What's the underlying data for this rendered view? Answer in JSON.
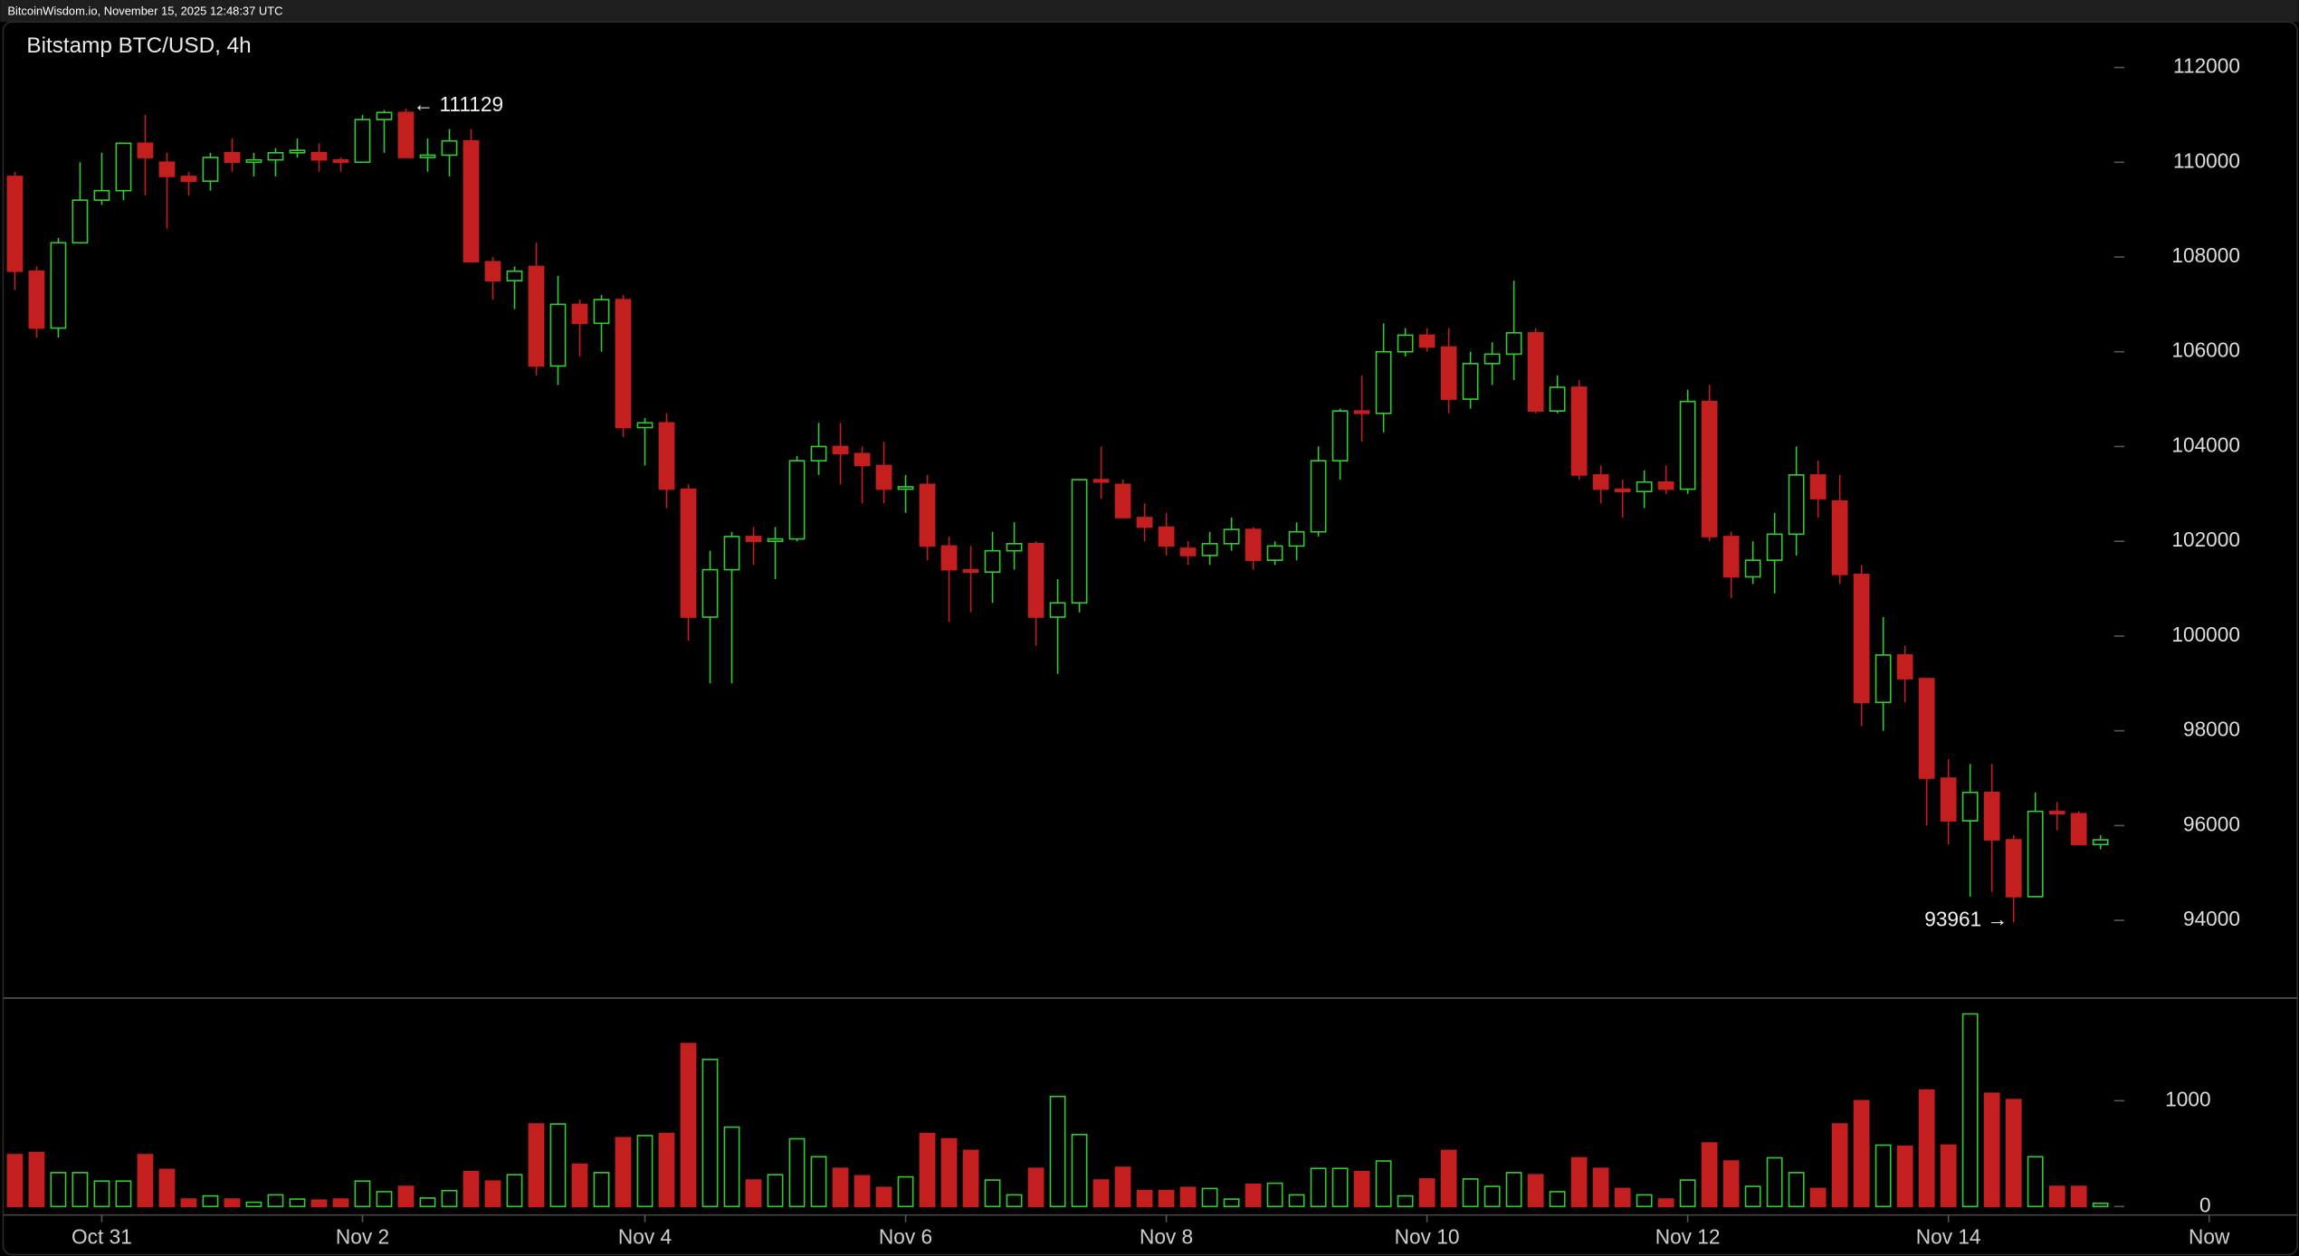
{
  "header": {
    "text": "BitcoinWisdom.io, November 15, 2025 12:48:37 UTC"
  },
  "chart_data": {
    "type": "candlestick",
    "title": "Bitstamp BTC/USD, 4h",
    "up_color": "#36c936",
    "down_color": "#c41f1f",
    "ylim": [
      92360,
      112960
    ],
    "yticks": [
      94000,
      96000,
      98000,
      100000,
      102000,
      104000,
      106000,
      108000,
      110000,
      112000
    ],
    "volume_ylim": [
      -80,
      1970
    ],
    "volume_yticks": [
      0,
      1000
    ],
    "xticks": [
      {
        "value": 4,
        "label": "Oct 31"
      },
      {
        "value": 16,
        "label": "Nov 2"
      },
      {
        "value": 29,
        "label": "Nov 4"
      },
      {
        "value": 41,
        "label": "Nov 6"
      },
      {
        "value": 53,
        "label": "Nov 8"
      },
      {
        "value": 65,
        "label": "Nov 10"
      },
      {
        "value": 77,
        "label": "Nov 12"
      },
      {
        "value": 89,
        "label": "Nov 14"
      },
      {
        "value": 101,
        "label": "Now"
      }
    ],
    "annotations": {
      "high": "← 111129",
      "low": "93961 →"
    },
    "open": [
      109700,
      107700,
      106500,
      108300,
      109200,
      109400,
      110400,
      110000,
      109700,
      109600,
      110200,
      110000,
      110050,
      110200,
      110200,
      110050,
      110000,
      110900,
      111050,
      110100,
      110150,
      110450,
      107900,
      107500,
      107800,
      105700,
      107000,
      106600,
      107100,
      104400,
      104500,
      103100,
      100400,
      101400,
      102100,
      102000,
      102050,
      103700,
      104000,
      103850,
      103600,
      103100,
      103200,
      101900,
      101400,
      101350,
      101800,
      101950,
      100400,
      100700,
      103300,
      103200,
      102500,
      102300,
      101850,
      101700,
      101950,
      102250,
      101600,
      101900,
      102200,
      103700,
      104750,
      104700,
      106000,
      106350,
      106100,
      105000,
      105750,
      105950,
      106400,
      104750,
      105250,
      103400,
      103100,
      103050,
      103250,
      103100,
      104950,
      102100,
      101250,
      101600,
      102150,
      103400,
      102850,
      101300,
      98600,
      99600,
      99100,
      97000,
      96100,
      96700,
      95700,
      94500,
      96300,
      96250,
      95600
    ],
    "high": [
      109800,
      107800,
      108400,
      110000,
      110200,
      110400,
      111000,
      110200,
      109800,
      110200,
      110500,
      110200,
      110300,
      110500,
      110400,
      110100,
      111000,
      111100,
      111129,
      110500,
      110700,
      110700,
      108000,
      107800,
      108300,
      107600,
      107100,
      107200,
      107200,
      104600,
      104700,
      103200,
      101800,
      102200,
      102300,
      102300,
      103800,
      104500,
      104500,
      104000,
      104100,
      103400,
      103400,
      102100,
      101900,
      102200,
      102400,
      102000,
      101200,
      103300,
      104000,
      103300,
      102800,
      102600,
      102000,
      102200,
      102500,
      102300,
      102000,
      102400,
      104000,
      104800,
      105500,
      106600,
      106500,
      106500,
      106500,
      106000,
      106200,
      107500,
      106500,
      105500,
      105400,
      103600,
      103300,
      103500,
      103600,
      105200,
      105300,
      102200,
      102000,
      102600,
      104000,
      103700,
      103400,
      101500,
      100400,
      99800,
      99100,
      97400,
      97300,
      97300,
      95800,
      96700,
      96500,
      96300,
      95800
    ],
    "low": [
      107300,
      106300,
      106300,
      108300,
      109100,
      109200,
      109300,
      108600,
      109300,
      109400,
      109800,
      109700,
      109700,
      110100,
      109800,
      109800,
      110000,
      110200,
      110100,
      109800,
      109700,
      107900,
      107100,
      106900,
      105500,
      105300,
      105900,
      106000,
      104200,
      103600,
      102700,
      99900,
      99000,
      99000,
      101500,
      101200,
      102000,
      103400,
      103200,
      102800,
      102800,
      102600,
      101600,
      100300,
      100500,
      100700,
      101400,
      99800,
      99200,
      100500,
      102900,
      102500,
      102000,
      101700,
      101500,
      101500,
      101800,
      101400,
      101500,
      101600,
      102100,
      103300,
      104100,
      104300,
      105900,
      106000,
      104700,
      104800,
      105300,
      105400,
      104700,
      104700,
      103300,
      102800,
      102500,
      102700,
      103000,
      103000,
      102000,
      100800,
      101100,
      100900,
      101700,
      102500,
      101100,
      98100,
      98000,
      98600,
      96000,
      95600,
      94500,
      94600,
      93961,
      94500,
      95900,
      95600,
      95500
    ],
    "close": [
      107700,
      106500,
      108300,
      109200,
      109400,
      110400,
      110100,
      109700,
      109600,
      110100,
      110000,
      110050,
      110200,
      110250,
      110050,
      110000,
      110900,
      111050,
      110100,
      110150,
      110450,
      107900,
      107500,
      107700,
      105700,
      107000,
      106600,
      107100,
      104400,
      104500,
      103100,
      100400,
      101400,
      102100,
      102000,
      102050,
      103700,
      104000,
      103850,
      103600,
      103100,
      103150,
      101900,
      101400,
      101350,
      101800,
      101950,
      100400,
      100700,
      103300,
      103250,
      102500,
      102300,
      101900,
      101700,
      101950,
      102250,
      101600,
      101900,
      102200,
      103700,
      104750,
      104700,
      106000,
      106350,
      106100,
      105000,
      105750,
      105950,
      106400,
      104750,
      105250,
      103400,
      103100,
      103050,
      103250,
      103100,
      104950,
      102100,
      101250,
      101600,
      102150,
      103400,
      102900,
      101300,
      98600,
      99600,
      99100,
      97000,
      96100,
      96700,
      95700,
      94500,
      96300,
      96250,
      95600,
      95700
    ],
    "volume": [
      490,
      510,
      320,
      320,
      240,
      240,
      490,
      350,
      70,
      100,
      70,
      40,
      110,
      70,
      60,
      70,
      240,
      140,
      190,
      80,
      150,
      330,
      240,
      300,
      780,
      780,
      400,
      320,
      650,
      670,
      690,
      1540,
      1390,
      750,
      250,
      300,
      640,
      470,
      360,
      290,
      180,
      280,
      690,
      640,
      530,
      250,
      110,
      360,
      1040,
      680,
      250,
      370,
      150,
      150,
      180,
      170,
      70,
      210,
      220,
      110,
      360,
      360,
      330,
      430,
      100,
      260,
      530,
      260,
      190,
      320,
      300,
      140,
      460,
      360,
      170,
      110,
      70,
      250,
      600,
      430,
      190,
      460,
      320,
      170,
      780,
      1000,
      580,
      570,
      1100,
      580,
      1820,
      1070,
      1010,
      470,
      190,
      190,
      30
    ]
  }
}
